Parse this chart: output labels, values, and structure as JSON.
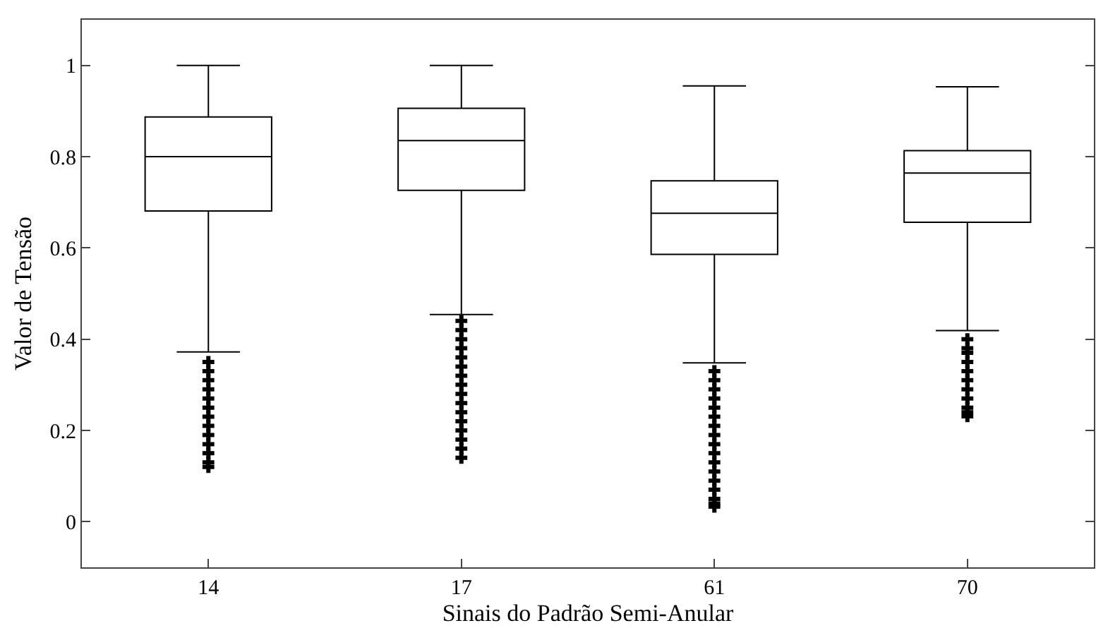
{
  "chart_data": {
    "type": "box",
    "xlabel": "Sinais do Padrão Semi-Anular",
    "ylabel": "Valor de Tensão",
    "categories": [
      "14",
      "17",
      "61",
      "70"
    ],
    "boxes": [
      {
        "low": 0.372,
        "q1": 0.681,
        "median": 0.8,
        "q3": 0.887,
        "high": 1.0,
        "outliers": [
          0.35,
          0.33,
          0.31,
          0.29,
          0.27,
          0.25,
          0.23,
          0.21,
          0.19,
          0.17,
          0.15,
          0.13,
          0.12
        ]
      },
      {
        "low": 0.454,
        "q1": 0.726,
        "median": 0.835,
        "q3": 0.906,
        "high": 1.0,
        "outliers": [
          0.44,
          0.42,
          0.4,
          0.38,
          0.36,
          0.34,
          0.32,
          0.3,
          0.28,
          0.26,
          0.24,
          0.22,
          0.2,
          0.18,
          0.16,
          0.14
        ]
      },
      {
        "low": 0.348,
        "q1": 0.586,
        "median": 0.676,
        "q3": 0.747,
        "high": 0.955,
        "outliers": [
          0.33,
          0.31,
          0.29,
          0.27,
          0.25,
          0.23,
          0.21,
          0.19,
          0.17,
          0.15,
          0.13,
          0.11,
          0.09,
          0.07,
          0.05,
          0.04,
          0.033
        ]
      },
      {
        "low": 0.419,
        "q1": 0.656,
        "median": 0.764,
        "q3": 0.813,
        "high": 0.953,
        "outliers": [
          0.4,
          0.38,
          0.37,
          0.35,
          0.33,
          0.31,
          0.29,
          0.27,
          0.25,
          0.24,
          0.231
        ]
      }
    ],
    "color": "#000000",
    "ylim": [
      -0.1,
      1.1
    ],
    "yticks": [
      0,
      0.2,
      0.4,
      0.6,
      0.8,
      1
    ],
    "grid": false,
    "marker": "cross"
  }
}
